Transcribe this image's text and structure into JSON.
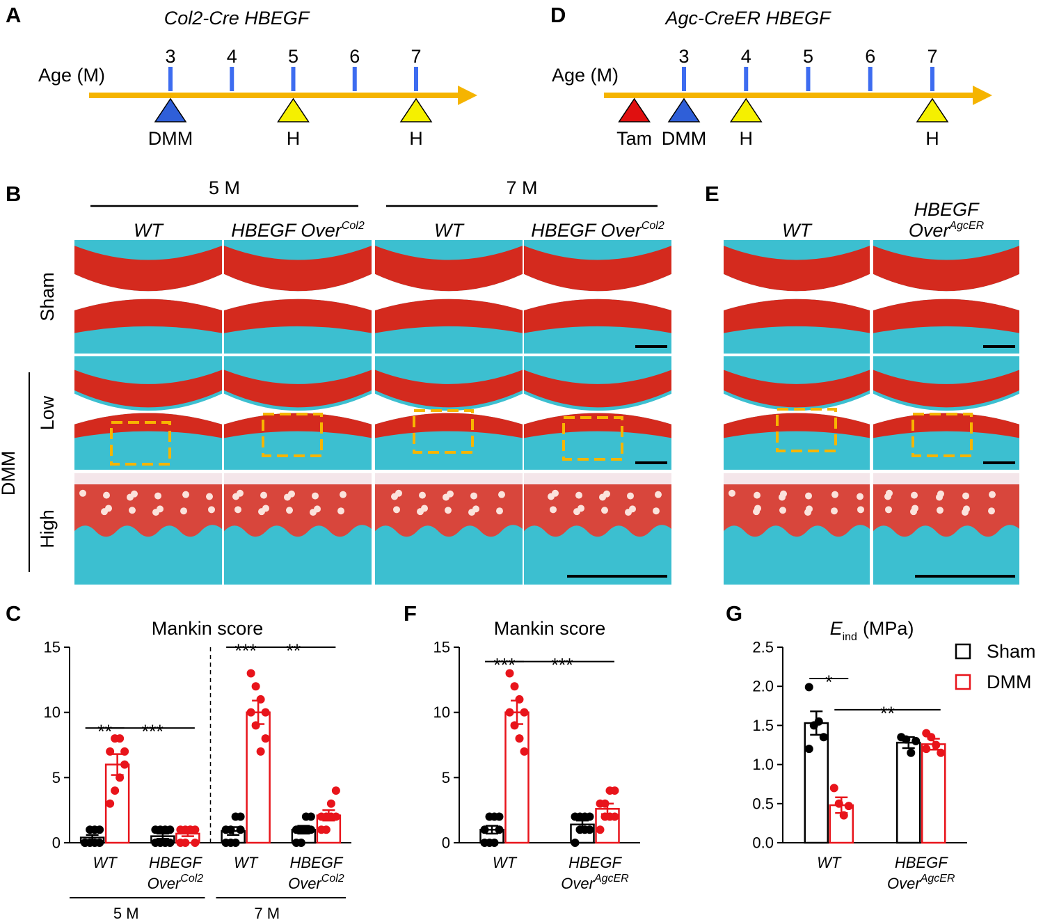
{
  "panel_letters": [
    "A",
    "B",
    "C",
    "D",
    "E",
    "F",
    "G"
  ],
  "timelines": [
    {
      "title": "Col2-Cre HBEGF",
      "axis_label": "Age (M)",
      "ticks": [
        3,
        4,
        5,
        6,
        7
      ],
      "tick_color": "#3d6cf0",
      "arrow_color": "#f5b400",
      "events": [
        {
          "label": "DMM",
          "at": 3,
          "color": "#2f5fd8"
        },
        {
          "label": "H",
          "at": 5,
          "color": "#f5f000"
        },
        {
          "label": "H",
          "at": 7,
          "color": "#f5f000"
        }
      ]
    },
    {
      "title": "Agc-CreER HBEGF",
      "axis_label": "Age (M)",
      "ticks": [
        3,
        4,
        5,
        6,
        7
      ],
      "tick_color": "#3d6cf0",
      "arrow_color": "#f5b400",
      "events": [
        {
          "label": "Tam",
          "at": 2.2,
          "color": "#e01010"
        },
        {
          "label": "DMM",
          "at": 3,
          "color": "#2f5fd8"
        },
        {
          "label": "H",
          "at": 4,
          "color": "#f5f000"
        },
        {
          "label": "H",
          "at": 7,
          "color": "#f5f000"
        }
      ]
    }
  ],
  "histology": [
    {
      "group_labels": [
        "5 M",
        "7 M"
      ],
      "columns": [
        [
          "WT"
        ],
        [
          "HBEGF Over"
        ],
        [
          "WT"
        ],
        [
          "HBEGF Over"
        ]
      ],
      "column_sup": [
        null,
        "Col2",
        null,
        "Col2"
      ],
      "rows": [
        "Sham",
        "Low",
        "High"
      ],
      "row_group": "DMM"
    },
    {
      "columns": [
        [
          "WT"
        ],
        [
          "HBEGF",
          "Over"
        ]
      ],
      "column_sup": [
        null,
        "AgcER"
      ]
    }
  ],
  "chart_data": [
    {
      "type": "bar",
      "title": "Mankin score",
      "categories": [
        [
          "WT"
        ],
        [
          "HBEGF",
          "Over"
        ],
        [
          "WT"
        ],
        [
          "HBEGF",
          "Over"
        ]
      ],
      "category_sup": [
        null,
        "Col2",
        null,
        "Col2"
      ],
      "group_labels": [
        "5 M",
        "7 M"
      ],
      "group_divider": true,
      "series": [
        {
          "color": "#000000",
          "values": [
            0.4,
            0.5,
            0.9,
            1.0
          ],
          "errors": [
            0.2,
            0.2,
            0.3,
            0.3
          ],
          "points": [
            [
              0,
              0,
              0,
              0,
              0,
              1,
              1,
              1
            ],
            [
              0,
              0,
              0,
              0,
              1,
              1,
              1,
              1
            ],
            [
              0,
              0,
              0,
              1,
              1,
              1,
              2,
              2
            ],
            [
              0,
              0,
              1,
              1,
              1,
              1,
              2,
              2
            ]
          ]
        },
        {
          "color": "#e8141b",
          "values": [
            6.0,
            0.7,
            10.0,
            2.1
          ],
          "errors": [
            0.8,
            0.2,
            0.9,
            0.4
          ],
          "points": [
            [
              3,
              4,
              5,
              6,
              7,
              8,
              8,
              7
            ],
            [
              0,
              0,
              1,
              1,
              1,
              1,
              1,
              0
            ],
            [
              13,
              12,
              11,
              10,
              10,
              9,
              7,
              8
            ],
            [
              1,
              1,
              2,
              2,
              2,
              2,
              3,
              4
            ]
          ]
        }
      ],
      "ylim": [
        0,
        15
      ],
      "yticks": [
        0,
        5,
        10,
        15
      ],
      "brackets": [
        {
          "text": "**",
          "from": [
            0,
            0
          ],
          "to": [
            0,
            1
          ],
          "y": 8.8
        },
        {
          "text": "***",
          "from": [
            0,
            1
          ],
          "to": [
            1,
            1
          ],
          "y": 8.8
        },
        {
          "text": "***",
          "from": [
            2,
            0
          ],
          "to": [
            2,
            1
          ],
          "y": 15
        },
        {
          "text": "**",
          "from": [
            2,
            1
          ],
          "to": [
            3,
            1
          ],
          "y": 15
        }
      ]
    },
    {
      "type": "bar",
      "title": "Mankin score",
      "categories": [
        [
          "WT"
        ],
        [
          "HBEGF",
          "Over"
        ]
      ],
      "category_sup": [
        null,
        "AgcER"
      ],
      "series": [
        {
          "color": "#000000",
          "values": [
            1.0,
            1.4
          ],
          "errors": [
            0.3,
            0.3
          ],
          "points": [
            [
              0,
              0,
              0,
              1,
              1,
              2,
              2,
              2
            ],
            [
              0,
              1,
              1,
              1,
              2,
              2,
              2,
              2
            ]
          ]
        },
        {
          "color": "#e8141b",
          "values": [
            10.0,
            2.6
          ],
          "errors": [
            0.9,
            0.4
          ],
          "points": [
            [
              13,
              12,
              11,
              10,
              10,
              9,
              8,
              7
            ],
            [
              1,
              2,
              2,
              2,
              3,
              3,
              4,
              4
            ]
          ]
        }
      ],
      "ylim": [
        0,
        15
      ],
      "yticks": [
        0,
        5,
        10,
        15
      ],
      "brackets": [
        {
          "text": "***",
          "from": [
            0,
            0
          ],
          "to": [
            0,
            1
          ],
          "y": 13.9
        },
        {
          "text": "***",
          "from": [
            0,
            1
          ],
          "to": [
            1,
            1
          ],
          "y": 13.9
        }
      ]
    },
    {
      "type": "bar",
      "title": "E",
      "title_sub": "ind",
      "title_suffix": "(MPa)",
      "categories": [
        [
          "WT"
        ],
        [
          "HBEGF",
          "Over"
        ]
      ],
      "category_sup": [
        null,
        "AgcER"
      ],
      "series": [
        {
          "name": "Sham",
          "color": "#000000",
          "values": [
            1.53,
            1.28
          ],
          "errors": [
            0.15,
            0.07
          ],
          "points": [
            [
              1.99,
              1.5,
              1.55,
              1.35,
              1.2
            ],
            [
              1.35,
              1.32,
              1.15,
              1.3
            ]
          ]
        },
        {
          "name": "DMM",
          "color": "#e8141b",
          "values": [
            0.48,
            1.26
          ],
          "errors": [
            0.1,
            0.07
          ],
          "points": [
            [
              0.7,
              0.5,
              0.35,
              0.47
            ],
            [
              1.4,
              1.35,
              1.25,
              1.15,
              1.2
            ]
          ]
        }
      ],
      "ylim": [
        0,
        2.5
      ],
      "yticks": [
        {
          "value": 0,
          "label": "0.0"
        },
        0.5,
        {
          "value": 1,
          "label": "1.0"
        },
        1.5,
        {
          "value": 2,
          "label": "2.0"
        },
        2.5
      ],
      "legend": "upper right",
      "brackets": [
        {
          "text": "*",
          "from": [
            0,
            0
          ],
          "to": [
            0,
            1
          ],
          "y": 2.1
        },
        {
          "text": "**",
          "from": [
            0,
            1
          ],
          "to": [
            1,
            1
          ],
          "y": 1.7
        }
      ]
    }
  ]
}
